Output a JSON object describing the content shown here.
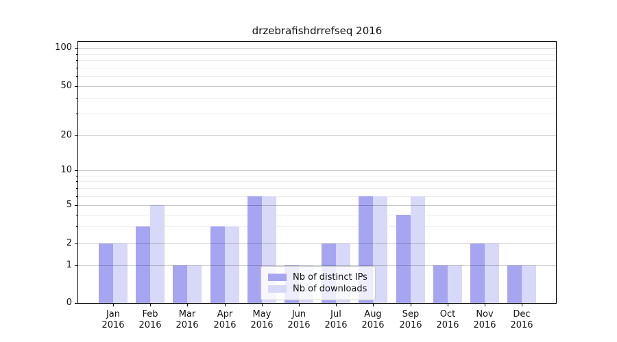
{
  "figure": {
    "background": "#ffffff",
    "axis_color": "#000000",
    "text_color": "#111111"
  },
  "chart_data": {
    "type": "bar",
    "title": "drzebrafishdrrefseq 2016",
    "categories": [
      "Jan 2016",
      "Feb 2016",
      "Mar 2016",
      "Apr 2016",
      "May 2016",
      "Jun 2016",
      "Jul 2016",
      "Aug 2016",
      "Sep 2016",
      "Oct 2016",
      "Nov 2016",
      "Dec 2016"
    ],
    "series": [
      {
        "name": "Nb of distinct IPs",
        "color": "#a5a5f2",
        "values": [
          2,
          3,
          1,
          3,
          6,
          1,
          2,
          6,
          4,
          1,
          2,
          1
        ]
      },
      {
        "name": "Nb of downloads",
        "color": "#d8d8f8",
        "values": [
          2,
          5,
          1,
          3,
          6,
          1,
          2,
          6,
          6,
          1,
          2,
          1
        ]
      }
    ],
    "y_axis": {
      "scale": "symlog",
      "ticks": [
        0,
        1,
        2,
        5,
        10,
        20,
        50,
        100
      ],
      "minor_gridlines": [
        3,
        4,
        6,
        7,
        8,
        9,
        30,
        40,
        60,
        70,
        80,
        90
      ],
      "range": [
        0,
        115
      ]
    },
    "x_axis": {
      "label_lines": 2
    },
    "legend": {
      "position": "bottom-center",
      "background": "rgba(255,255,255,0.8)",
      "border_color": "#cccccc"
    },
    "grid": {
      "enabled": true,
      "major_color": "rgba(0,0,0,0.22)",
      "minor_color": "rgba(0,0,0,0.075)"
    }
  }
}
